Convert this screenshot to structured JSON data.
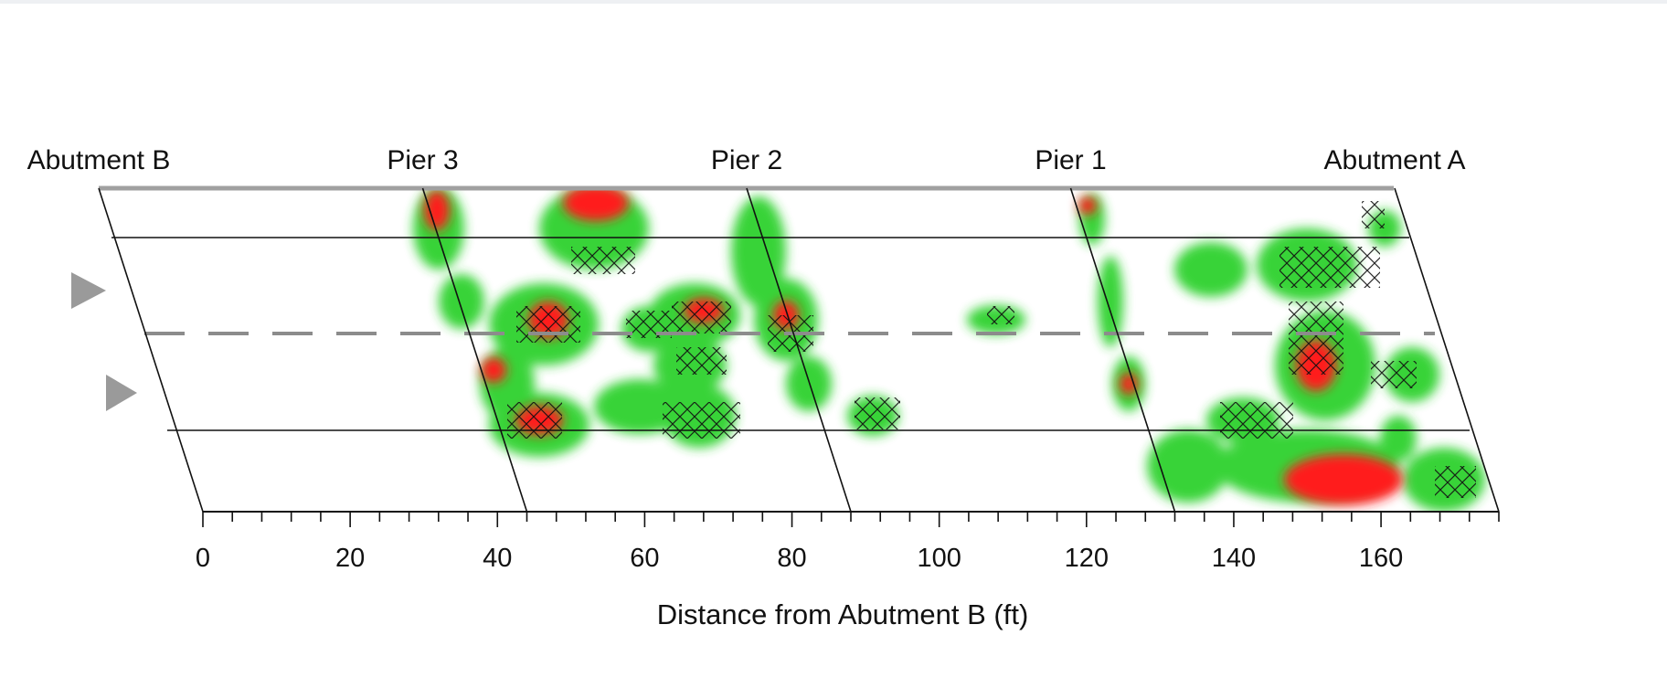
{
  "supports": [
    {
      "id": "abutment-b",
      "label": "Abutment B",
      "distance_ft": 0
    },
    {
      "id": "pier-3",
      "label": "Pier 3",
      "distance_ft": 44
    },
    {
      "id": "pier-2",
      "label": "Pier 2",
      "distance_ft": 88
    },
    {
      "id": "pier-1",
      "label": "Pier 1",
      "distance_ft": 132
    },
    {
      "id": "abutment-a",
      "label": "Abutment A",
      "distance_ft": 176
    }
  ],
  "x_axis": {
    "label": "Distance from Abutment B (ft)",
    "ticks": [
      0,
      20,
      40,
      60,
      80,
      100,
      120,
      140,
      160
    ],
    "range": [
      0,
      176
    ]
  },
  "lanes": 2,
  "traffic_direction_markers": 2,
  "colors": {
    "high_value": "#ff1a1a",
    "low_value": "#22d422",
    "outline": "#111111",
    "centerline": "#8c8c8c",
    "arrow": "#9a9a9a"
  }
}
